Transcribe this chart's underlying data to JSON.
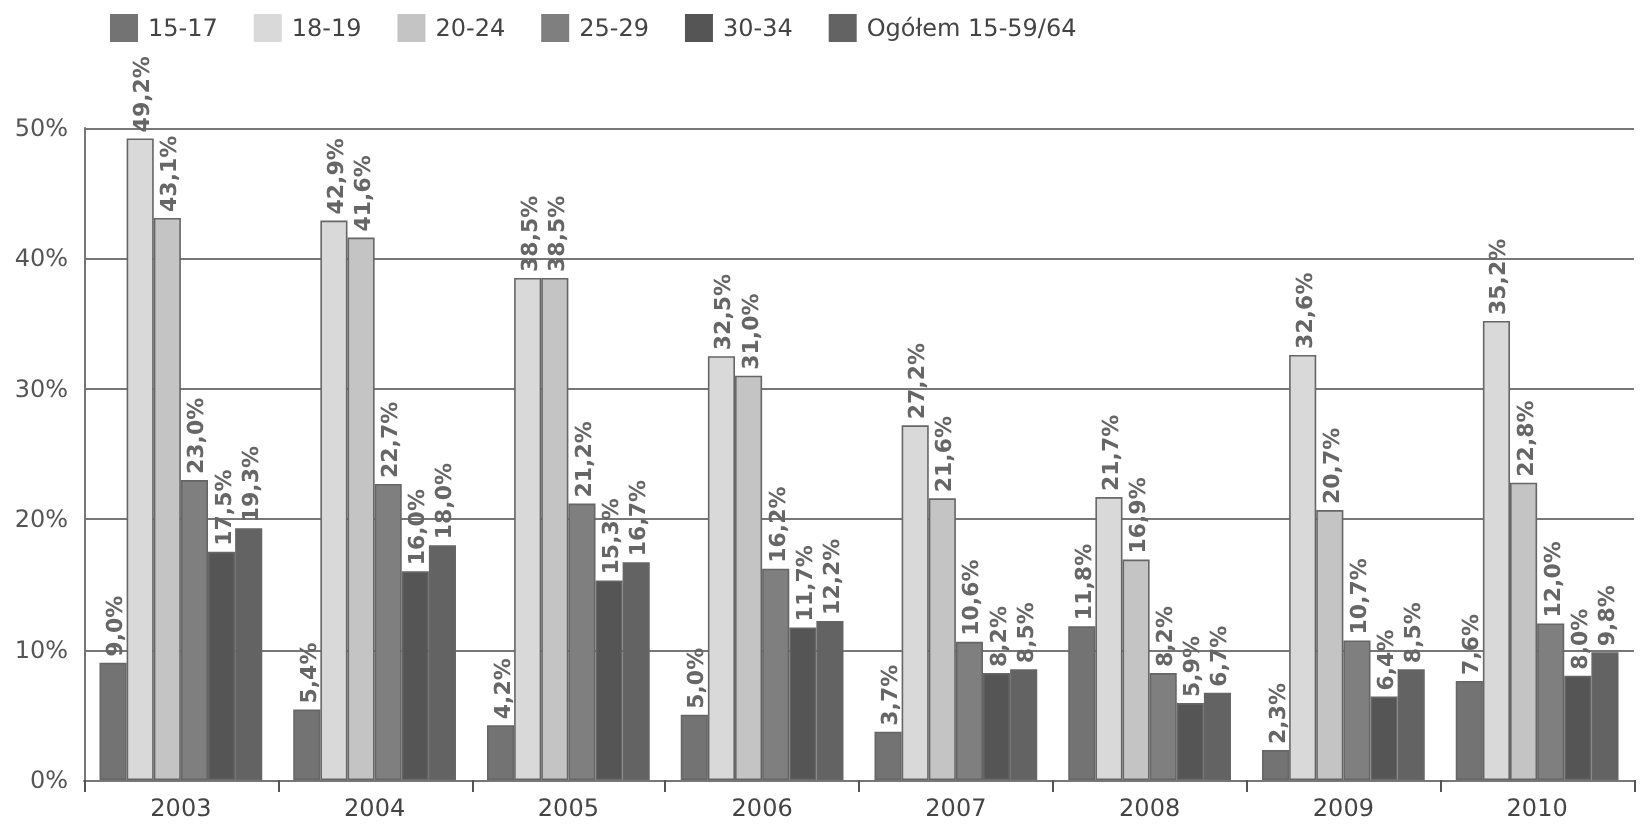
{
  "chart_data": {
    "type": "bar",
    "categories": [
      "2003",
      "2004",
      "2005",
      "2006",
      "2007",
      "2008",
      "2009",
      "2010"
    ],
    "series": [
      {
        "name": "15-17",
        "color": "#737373",
        "values": [
          9.0,
          5.4,
          4.2,
          5.0,
          3.7,
          11.8,
          2.3,
          7.6
        ],
        "value_labels": [
          "9,0%",
          "5,4%",
          "4,2%",
          "5,0%",
          "3,7%",
          "11,8%",
          "2,3%",
          "7,6%"
        ]
      },
      {
        "name": "18-19",
        "color": "#d9d9d9",
        "values": [
          49.2,
          42.9,
          38.5,
          32.5,
          27.2,
          21.7,
          32.6,
          35.2
        ],
        "value_labels": [
          "49,2%",
          "42,9%",
          "38,5%",
          "32,5%",
          "27,2%",
          "21,7%",
          "32,6%",
          "35,2%"
        ]
      },
      {
        "name": "20-24",
        "color": "#c4c4c4",
        "values": [
          43.1,
          41.6,
          38.5,
          31.0,
          21.6,
          16.9,
          20.7,
          22.8
        ],
        "value_labels": [
          "43,1%",
          "41,6%",
          "38,5%",
          "31,0%",
          "21,6%",
          "16,9%",
          "20,7%",
          "22,8%"
        ]
      },
      {
        "name": "25-29",
        "color": "#7f7f7f",
        "values": [
          23.0,
          22.7,
          21.2,
          16.2,
          10.6,
          8.2,
          10.7,
          12.0
        ],
        "value_labels": [
          "23,0%",
          "22,7%",
          "21,2%",
          "16,2%",
          "10,6%",
          "8,2%",
          "10,7%",
          "12,0%"
        ]
      },
      {
        "name": "30-34",
        "color": "#555555",
        "values": [
          17.5,
          16.0,
          15.3,
          11.7,
          8.2,
          5.9,
          6.4,
          8.0
        ],
        "value_labels": [
          "17,5%",
          "16,0%",
          "15,3%",
          "11,7%",
          "8,2%",
          "5,9%",
          "6,4%",
          "8,0%"
        ]
      },
      {
        "name": "Ogółem 15-59/64",
        "color": "#636363",
        "values": [
          19.3,
          18.0,
          16.7,
          12.2,
          8.5,
          6.7,
          8.5,
          9.8
        ],
        "value_labels": [
          "19,3%",
          "18,0%",
          "16,7%",
          "12,2%",
          "8,5%",
          "6,7%",
          "8,5%",
          "9,8%"
        ]
      }
    ],
    "ylim": [
      0,
      50
    ],
    "yticks": [
      {
        "value": 0,
        "label": "0%"
      },
      {
        "value": 10,
        "label": "10%"
      },
      {
        "value": 20,
        "label": "20%"
      },
      {
        "value": 30,
        "label": "30%"
      },
      {
        "value": 40,
        "label": "40%"
      },
      {
        "value": 50,
        "label": "50%"
      }
    ],
    "grid": "y",
    "legend": "top"
  }
}
